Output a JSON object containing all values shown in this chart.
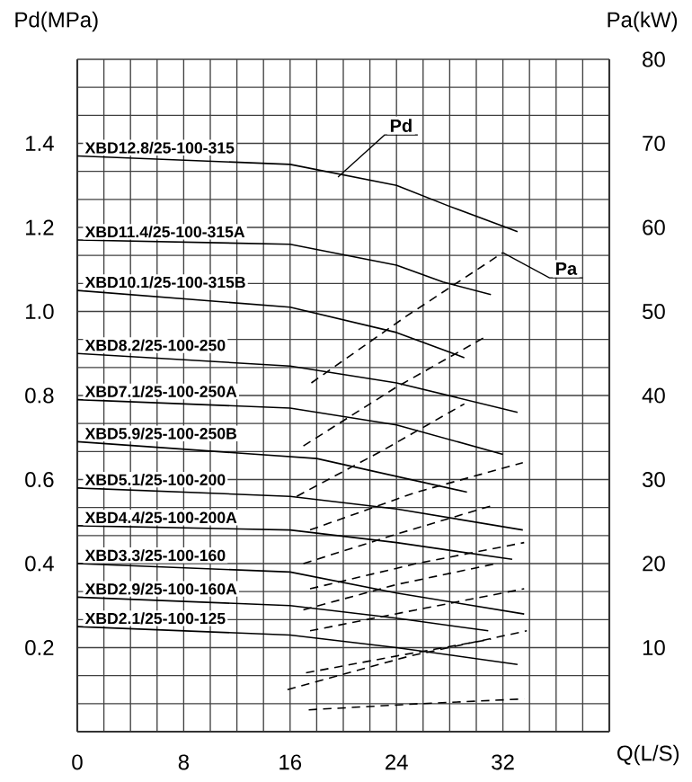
{
  "chart_data": {
    "type": "line",
    "ylabel": "Pd(MPa)",
    "y2label": "Pa(kW)",
    "xlabel": "Q(L/S)",
    "xlim": [
      0,
      40
    ],
    "ylim": [
      0,
      1.6
    ],
    "y2lim": [
      0,
      80
    ],
    "grid": true,
    "line_style": "solid",
    "xticks": [
      0,
      {
        "value": 2,
        "label": null
      },
      {
        "value": 4,
        "label": null
      },
      {
        "value": 6,
        "label": null
      },
      8,
      {
        "value": 10,
        "label": null
      },
      {
        "value": 12,
        "label": null
      },
      {
        "value": 14,
        "label": null
      },
      16,
      {
        "value": 18,
        "label": null
      },
      {
        "value": 20,
        "label": null
      },
      {
        "value": 22,
        "label": null
      },
      24,
      {
        "value": 26,
        "label": null
      },
      {
        "value": 28,
        "label": null
      },
      {
        "value": 30,
        "label": null
      },
      32,
      {
        "value": 34,
        "label": null
      },
      {
        "value": 36,
        "label": null
      },
      {
        "value": 38,
        "label": null
      },
      {
        "value": 40,
        "label": null
      }
    ],
    "yticks": [
      {
        "value": 0,
        "label": null
      },
      {
        "value": 0.0667,
        "label": null
      },
      {
        "value": 0.1333,
        "label": null
      },
      0.2,
      {
        "value": 0.2667,
        "label": null
      },
      {
        "value": 0.3333,
        "label": null
      },
      0.4,
      {
        "value": 0.4667,
        "label": null
      },
      {
        "value": 0.5333,
        "label": null
      },
      0.6,
      {
        "value": 0.6667,
        "label": null
      },
      {
        "value": 0.7333,
        "label": null
      },
      0.8,
      {
        "value": 0.8667,
        "label": null
      },
      {
        "value": 0.9333,
        "label": null
      },
      {
        "value": 1,
        "label": "1.0"
      },
      {
        "value": 1.0667,
        "label": null
      },
      {
        "value": 1.1333,
        "label": null
      },
      1.2,
      {
        "value": 1.2667,
        "label": null
      },
      {
        "value": 1.3333,
        "label": null
      },
      1.4,
      {
        "value": 1.4667,
        "label": null
      },
      {
        "value": 1.5333,
        "label": null
      },
      {
        "value": 1.6,
        "label": null
      }
    ],
    "y2ticks": [
      10,
      20,
      30,
      40,
      50,
      60,
      70,
      80
    ],
    "annotations": [
      {
        "text": "Pd",
        "x": 19.6,
        "y": 1.32
      },
      {
        "text": "Pa",
        "x": 32.0,
        "y": 1.14
      }
    ],
    "series": [
      {
        "name": "XBD12.8/25-100-315",
        "color": "#000000",
        "x": [
          0,
          16,
          24,
          28,
          33.1
        ],
        "values": [
          1.37,
          1.35,
          1.3,
          1.25,
          1.19
        ]
      },
      {
        "name": "XBD11.4/25-100-315A",
        "color": "#000000",
        "x": [
          0,
          16,
          24,
          27.5,
          31.1
        ],
        "values": [
          1.17,
          1.16,
          1.11,
          1.07,
          1.04
        ]
      },
      {
        "name": "XBD10.1/25-100-315B",
        "color": "#000000",
        "x": [
          0,
          16,
          24,
          29.1
        ],
        "values": [
          1.05,
          1.01,
          0.95,
          0.89
        ]
      },
      {
        "name": "XBD8.2/25-100-250",
        "color": "#000000",
        "x": [
          0,
          16,
          24,
          33.1
        ],
        "values": [
          0.9,
          0.87,
          0.83,
          0.76
        ]
      },
      {
        "name": "XBD7.1/25-100-250A",
        "color": "#000000",
        "x": [
          0,
          16,
          24,
          32.0
        ],
        "values": [
          0.79,
          0.77,
          0.73,
          0.66
        ]
      },
      {
        "name": "XBD5.9/25-100-250B",
        "color": "#000000",
        "x": [
          0,
          18,
          29.3
        ],
        "values": [
          0.69,
          0.65,
          0.57
        ]
      },
      {
        "name": "XBD5.1/25-100-200",
        "color": "#000000",
        "x": [
          0,
          16,
          24,
          33.5
        ],
        "values": [
          0.58,
          0.56,
          0.53,
          0.48
        ]
      },
      {
        "name": "XBD4.4/25-100-200A",
        "color": "#000000",
        "x": [
          0,
          16,
          24,
          32.7
        ],
        "values": [
          0.49,
          0.48,
          0.45,
          0.41
        ]
      },
      {
        "name": "XBD3.3/25-100-160",
        "color": "#000000",
        "x": [
          0,
          16,
          24,
          33.6
        ],
        "values": [
          0.4,
          0.38,
          0.33,
          0.28
        ]
      },
      {
        "name": "XBD2.9/25-100-160A",
        "color": "#000000",
        "x": [
          0,
          16,
          24,
          30.9
        ],
        "values": [
          0.32,
          0.3,
          0.27,
          0.24
        ]
      },
      {
        "name": "XBD2.1/25-100-125",
        "color": "#000000",
        "x": [
          0,
          16,
          24,
          33.1
        ],
        "values": [
          0.25,
          0.23,
          0.2,
          0.16
        ]
      },
      {
        "color": "#000000",
        "axis": "y2",
        "line_style": "dashed",
        "x": [
          17.6,
          24.8,
          32.0
        ],
        "values": [
          41.5,
          49.5,
          57
        ]
      },
      {
        "color": "#000000",
        "axis": "y2",
        "line_style": "dashed",
        "x": [
          17.0,
          24,
          30.7
        ],
        "values": [
          34,
          41,
          47
        ]
      },
      {
        "color": "#000000",
        "axis": "y2",
        "line_style": "dashed",
        "x": [
          16.5,
          23,
          29.1
        ],
        "values": [
          28,
          33.5,
          39
        ]
      },
      {
        "color": "#000000",
        "axis": "y2",
        "line_style": "dashed",
        "x": [
          17.5,
          25.5,
          33.5
        ],
        "values": [
          24,
          28.5,
          32
        ]
      },
      {
        "color": "#000000",
        "axis": "y2",
        "line_style": "dashed",
        "x": [
          17,
          24,
          31.4
        ],
        "values": [
          20,
          23.5,
          27
        ]
      },
      {
        "color": "#000000",
        "axis": "y2",
        "line_style": "dashed",
        "x": [
          17.5,
          25.5,
          33.6
        ],
        "values": [
          17,
          20,
          22.5
        ]
      },
      {
        "color": "#000000",
        "axis": "y2",
        "line_style": "dashed",
        "x": [
          17,
          24,
          31.5
        ],
        "values": [
          14.5,
          17.5,
          20
        ]
      },
      {
        "color": "#000000",
        "axis": "y2",
        "line_style": "dashed",
        "x": [
          17.5,
          25.5,
          33.6
        ],
        "values": [
          12,
          14.5,
          17
        ]
      },
      {
        "color": "#000000",
        "axis": "y2",
        "line_style": "dashed",
        "x": [
          17.2,
          24,
          31.1
        ],
        "values": [
          7,
          9,
          11
        ]
      },
      {
        "color": "#000000",
        "axis": "y2",
        "line_style": "dashed",
        "x": [
          15.8,
          25,
          33.8
        ],
        "values": [
          5,
          9,
          12
        ]
      },
      {
        "color": "#000000",
        "axis": "y2",
        "line_style": "dashed",
        "x": [
          17.4,
          25.5,
          33.6
        ],
        "values": [
          2.6,
          3.3,
          3.9
        ]
      }
    ]
  }
}
